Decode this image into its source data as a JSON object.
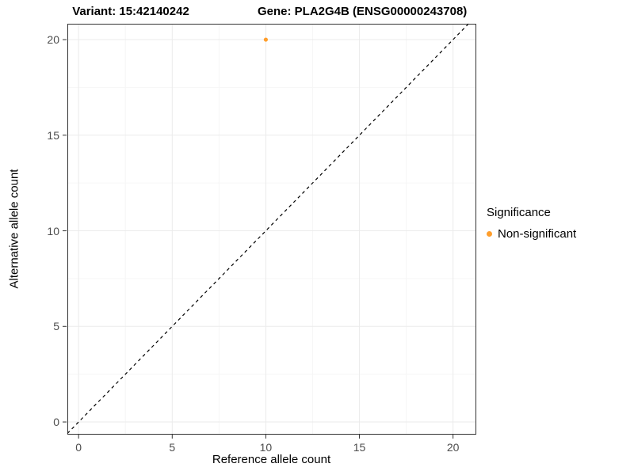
{
  "chart_data": {
    "type": "scatter",
    "titles": {
      "left": "Variant: 15:42140242",
      "right": "Gene: PLA2G4B (ENSG00000243708)"
    },
    "xlabel": "Reference allele count",
    "ylabel": "Alternative allele count",
    "xlim": [
      -0.6,
      21.2
    ],
    "ylim": [
      -0.62,
      20.83
    ],
    "x_ticks": [
      0,
      5,
      10,
      15,
      20
    ],
    "y_ticks": [
      0,
      5,
      10,
      15,
      20
    ],
    "grid": {
      "major": true,
      "minor": true
    },
    "points": [
      {
        "x": 10,
        "y": 20,
        "series": "Non-significant"
      }
    ],
    "reference_line": {
      "kind": "identity y=x",
      "style": "dashed",
      "color": "#000000"
    },
    "legend": {
      "title": "Significance",
      "position": "right",
      "entries": [
        {
          "label": "Non-significant",
          "color": "#FF9E2C"
        }
      ]
    }
  },
  "colors": {
    "background": "#ffffff",
    "grid_major": "#ebebeb",
    "grid_minor": "#f6f6f6",
    "panel_border": "#333333",
    "tick_mark": "#333333",
    "axis_text": "#4d4d4d",
    "non_significant": "#FF9E2C"
  }
}
